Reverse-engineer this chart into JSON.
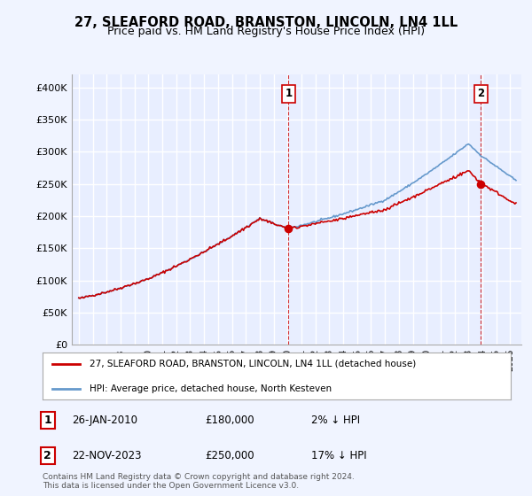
{
  "title": "27, SLEAFORD ROAD, BRANSTON, LINCOLN, LN4 1LL",
  "subtitle": "Price paid vs. HM Land Registry's House Price Index (HPI)",
  "legend_line1": "27, SLEAFORD ROAD, BRANSTON, LINCOLN, LN4 1LL (detached house)",
  "legend_line2": "HPI: Average price, detached house, North Kesteven",
  "annotation1_date": "26-JAN-2010",
  "annotation1_price": "£180,000",
  "annotation1_hpi": "2% ↓ HPI",
  "annotation2_date": "22-NOV-2023",
  "annotation2_price": "£250,000",
  "annotation2_hpi": "17% ↓ HPI",
  "footnote": "Contains HM Land Registry data © Crown copyright and database right 2024.\nThis data is licensed under the Open Government Licence v3.0.",
  "ylim": [
    0,
    420000
  ],
  "yticks": [
    0,
    50000,
    100000,
    150000,
    200000,
    250000,
    300000,
    350000,
    400000
  ],
  "ytick_labels": [
    "£0",
    "£50K",
    "£100K",
    "£150K",
    "£200K",
    "£250K",
    "£300K",
    "£350K",
    "£400K"
  ],
  "sale1_year": 2010.07,
  "sale1_value": 180000,
  "sale2_year": 2023.9,
  "sale2_value": 250000,
  "vline1_year": 2010.07,
  "vline2_year": 2023.9,
  "background_color": "#f0f4ff",
  "plot_bg_color": "#e8eeff",
  "grid_color": "#ffffff",
  "line_color_hpi": "#6699cc",
  "line_color_price": "#cc0000",
  "sale_dot_color": "#cc0000"
}
